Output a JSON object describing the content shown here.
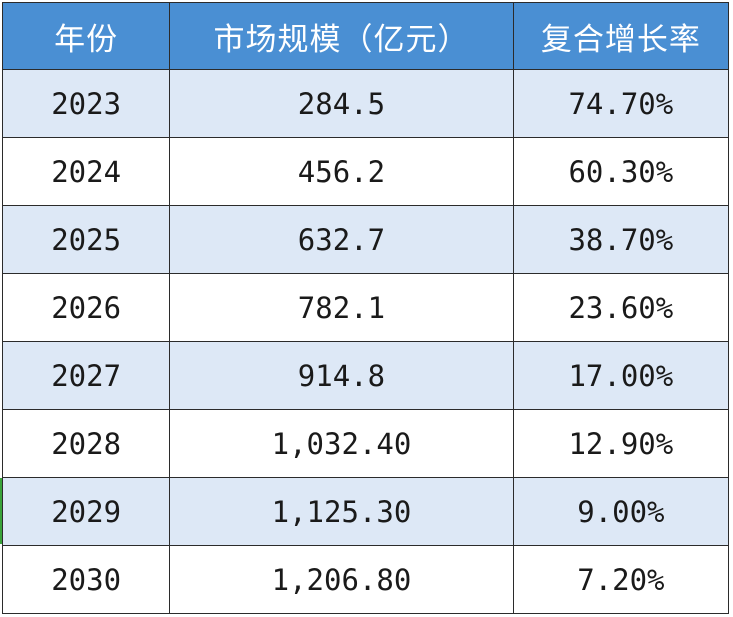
{
  "table": {
    "headers": {
      "year": "年份",
      "size": "市场规模（亿元）",
      "rate": "复合增长率"
    },
    "rows": [
      {
        "year": "2023",
        "size": "284.5",
        "rate": "74.70%"
      },
      {
        "year": "2024",
        "size": "456.2",
        "rate": "60.30%"
      },
      {
        "year": "2025",
        "size": "632.7",
        "rate": "38.70%"
      },
      {
        "year": "2026",
        "size": "782.1",
        "rate": "23.60%"
      },
      {
        "year": "2027",
        "size": "914.8",
        "rate": "17.00%"
      },
      {
        "year": "2028",
        "size": "1,032.40",
        "rate": "12.90%"
      },
      {
        "year": "2029",
        "size": "1,125.30",
        "rate": "9.00%"
      },
      {
        "year": "2030",
        "size": "1,206.80",
        "rate": "7.20%"
      }
    ]
  },
  "colors": {
    "header_bg": "#4a8fd3",
    "alt_row_bg": "#dde8f6",
    "text": "#1a1a1a"
  }
}
